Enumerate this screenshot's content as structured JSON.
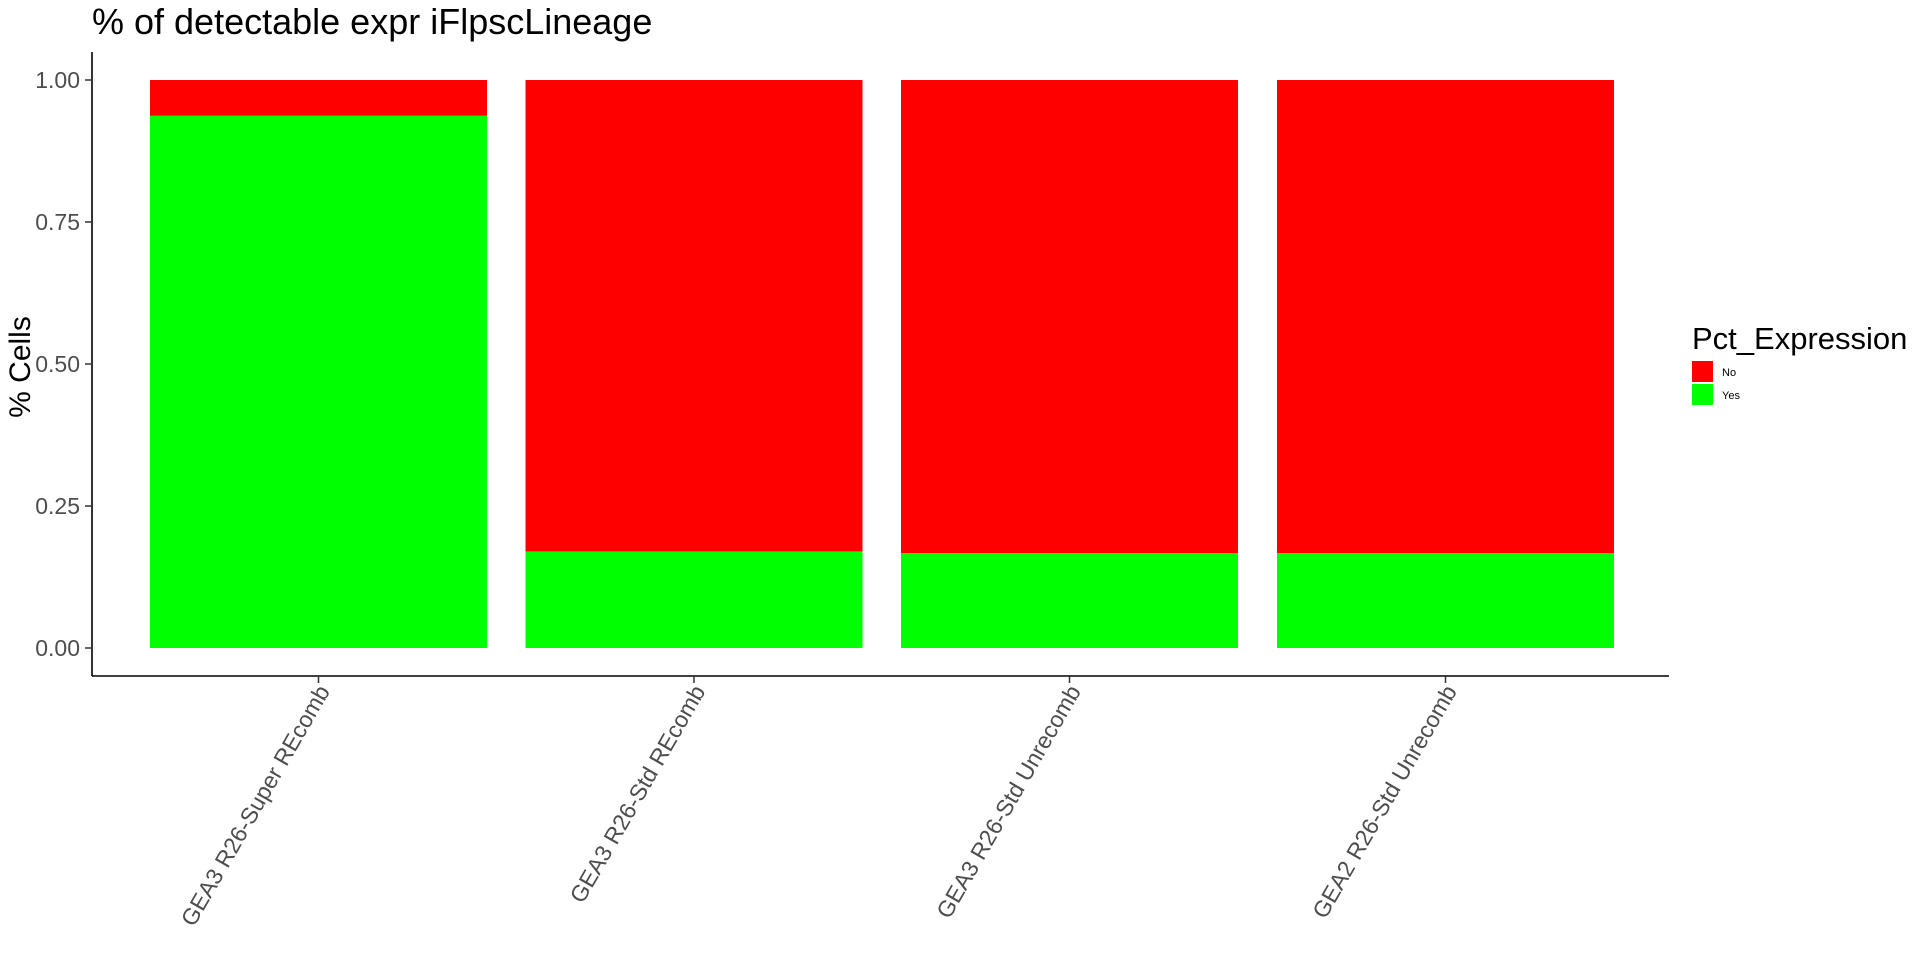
{
  "chart_data": {
    "type": "bar",
    "stacked": true,
    "title": "% of detectable expr iFlpscLineage",
    "xlabel": "",
    "ylabel": "% Cells",
    "ylim": [
      0,
      1
    ],
    "yticks": [
      "0.00",
      "0.25",
      "0.50",
      "0.75",
      "1.00"
    ],
    "categories": [
      "GEA3 R26-Super REcomb",
      "GEA3 R26-Std REcomb",
      "GEA3 R26-Std Unrecomb",
      "GEA2 R26-Std Unrecomb"
    ],
    "series": [
      {
        "name": "No",
        "values": [
          0.063,
          0.83,
          0.833,
          0.833
        ],
        "color": "#ff0000"
      },
      {
        "name": "Yes",
        "values": [
          0.937,
          0.17,
          0.167,
          0.167
        ],
        "color": "#00ff00"
      }
    ],
    "legend": {
      "title": "Pct_Expression",
      "position": "right",
      "items": [
        {
          "label": "No",
          "color": "#ff0000"
        },
        {
          "label": "Yes",
          "color": "#00ff00"
        }
      ]
    },
    "grid": false
  }
}
